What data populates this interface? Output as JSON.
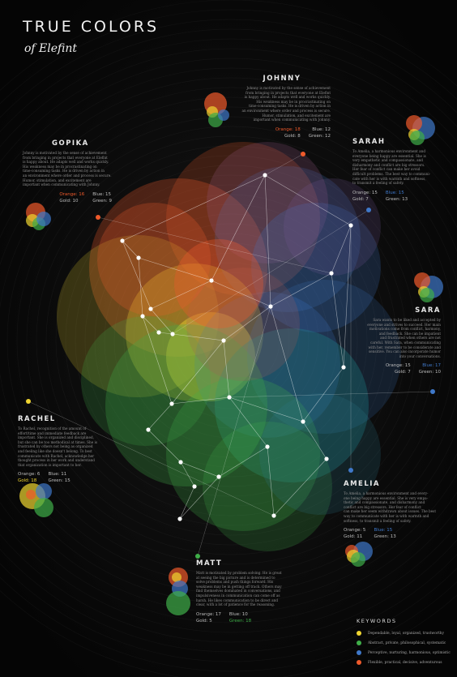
{
  "title": "TRUE COLORS",
  "subtitle": "of Elefint",
  "colors": {
    "orange": "#ef5a2b",
    "gold": "#f0d531",
    "green": "#3fae49",
    "blue": "#3f78c9",
    "background": "#050505"
  },
  "people": [
    {
      "name": "JOHNNY",
      "desc": [
        "Johnny is motivated by the sense of achievement",
        "from bringing in projects that everyone at Elefint",
        "is happy about. He adapts well and works quickly.",
        "His weakness may be in procrastinating on",
        "time-consuming tasks. He is driven by action in",
        "an environment where order and process is secure.",
        "Humor, stimulation, and excitement are",
        "important when communicating with Johnny."
      ],
      "orange": "Orange: 18",
      "blue": "Blue: 12",
      "gold": "Gold: 8",
      "green": "Green: 12",
      "top": "orange"
    },
    {
      "name": "GOPIKA",
      "desc": [
        "Johnny is motivated by the sense of achievement",
        "from bringing in projects that everyone at Elefint",
        "is happy about. He adapts well and works quickly.",
        "His weakness may be in procrastinating on",
        "time-consuming tasks. He is driven by action in",
        "an environment where order and process is secure.",
        "Humor, stimulation, and excitement are",
        "important when communicating with Johnny."
      ],
      "orange": "Orange: 16",
      "blue": "Blue: 15",
      "gold": "Gold: 10",
      "green": "Green: 9",
      "top": "orange"
    },
    {
      "name": "SARAH",
      "desc": [
        "To Amelia, a harmonious environment and",
        "everyone being happy are essential. She is",
        "very empathetic and compassionate, and",
        "disharmony and conflict are big stressors.",
        "Her fear of conflict can make her avoid",
        "difficult problems. The best way to communi-",
        "cate with her is with warmth and softness,",
        "to transmit a feeling of safety."
      ],
      "orange": "Orange: 15",
      "blue": "Blue: 15",
      "gold": "Gold: 7",
      "green": "Green: 13",
      "top": "blue"
    },
    {
      "name": "SARA",
      "desc": [
        "Sara wants to be liked and accepted by",
        "everyone and strives to succeed. Her main",
        "motivations come from conflict, harmony,",
        "and feedback. She can be impatient",
        "and frustrated when others are not",
        "careful. With Sara, when communicating",
        "with her, remember to be considerate and",
        "sensitive. You can also incorporate humor",
        "into your conversations."
      ],
      "orange": "Orange: 15",
      "blue": "Blue: 17",
      "gold": "Gold: 7",
      "green": "Green: 10",
      "top": "blue"
    },
    {
      "name": "RACHEL",
      "desc": [
        "To Rachel, recognition of the amount of",
        "effort/time and immediate feedback are",
        "important. She is organized and disciplined,",
        "but she can be too methodical at times. She is",
        "frustrated by others not being as organized",
        "and feeling like she doesn't belong. To best",
        "communicate with Rachel, acknowledge her",
        "thought process in her work and understand",
        "that organization is important to her."
      ],
      "orange": "Orange: 6",
      "blue": "Blue: 11",
      "gold": "Gold: 18",
      "green": "Green: 15",
      "top": "gold"
    },
    {
      "name": "AMELIA",
      "desc": [
        "To Amelia, a harmonious environment and every-",
        "one being happy are essential. She is very empa-",
        "thetic and compassionate, and disharmony and",
        "conflict are big stressors. Her fear of conflict",
        "can make her seem withdrawn about issues. The best",
        "way to communicate with her is with warmth and",
        "softness, to transmit a feeling of safety."
      ],
      "orange": "Orange: 5",
      "blue": "Blue: 15",
      "gold": "Gold: 11",
      "green": "Green: 13",
      "top": "blue"
    },
    {
      "name": "MATT",
      "desc": [
        "Matt is motivated by problem solving. He is great",
        "at seeing the big picture and is determined to",
        "solve problems and push things forward. His",
        "weakness may be in getting off track. Others may",
        "find themselves dominated in conversations, and",
        "impulsiveness in communication can come off as",
        "harsh. He likes communication to be direct and",
        "clear, with a lot of patience for the reasoning."
      ],
      "orange": "Orange: 17",
      "blue": "Blue: 10",
      "gold": "Gold: 5",
      "green": "Green: 18",
      "top": "green"
    }
  ],
  "keywords": {
    "title": "KEYWORDS",
    "items": [
      {
        "color": "#f0d531",
        "text": "Dependable, loyal, organized, trustworthy"
      },
      {
        "color": "#3fae49",
        "text": "Abstract, private, philosophical, systematic"
      },
      {
        "color": "#3f78c9",
        "text": "Perceptive, nurturing, harmonious, optimistic"
      },
      {
        "color": "#ef5a2b",
        "text": "Flexible, practical, decisive, adventurous"
      }
    ]
  }
}
